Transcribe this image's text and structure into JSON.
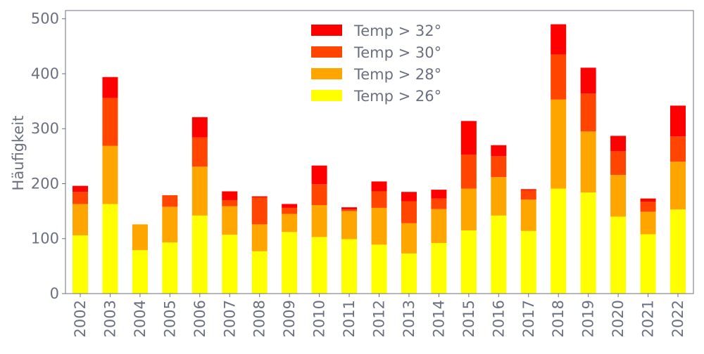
{
  "chart_data": {
    "type": "bar",
    "stacked": true,
    "title": "",
    "xlabel": "",
    "ylabel": "Häufigkeit",
    "ylim": [
      0,
      515
    ],
    "yticks": [
      0,
      100,
      200,
      300,
      400,
      500
    ],
    "legend_position": "top-center",
    "categories": [
      "2002",
      "2003",
      "2004",
      "2005",
      "2006",
      "2007",
      "2008",
      "2009",
      "2010",
      "2011",
      "2012",
      "2013",
      "2014",
      "2015",
      "2016",
      "2017",
      "2018",
      "2019",
      "2020",
      "2021",
      "2022"
    ],
    "series": [
      {
        "name": "Temp > 26°",
        "color": "#ffff00",
        "values": [
          106,
          163,
          79,
          93,
          142,
          107,
          77,
          112,
          103,
          99,
          89,
          73,
          92,
          115,
          142,
          114,
          191,
          184,
          140,
          108,
          153
        ]
      },
      {
        "name": "Temp > 28°",
        "color": "#ffa500",
        "values": [
          57,
          106,
          47,
          65,
          89,
          52,
          49,
          33,
          58,
          51,
          67,
          55,
          62,
          76,
          70,
          57,
          162,
          111,
          76,
          41,
          87
        ]
      },
      {
        "name": "Temp > 30°",
        "color": "#ff4500",
        "values": [
          22,
          87,
          0,
          21,
          53,
          11,
          49,
          11,
          38,
          3,
          30,
          40,
          19,
          62,
          38,
          17,
          82,
          69,
          43,
          18,
          46
        ]
      },
      {
        "name": "Temp > 32°",
        "color": "#ff0000",
        "values": [
          11,
          38,
          0,
          0,
          37,
          16,
          2,
          7,
          34,
          4,
          18,
          17,
          16,
          61,
          20,
          2,
          55,
          47,
          28,
          6,
          56
        ]
      }
    ]
  }
}
